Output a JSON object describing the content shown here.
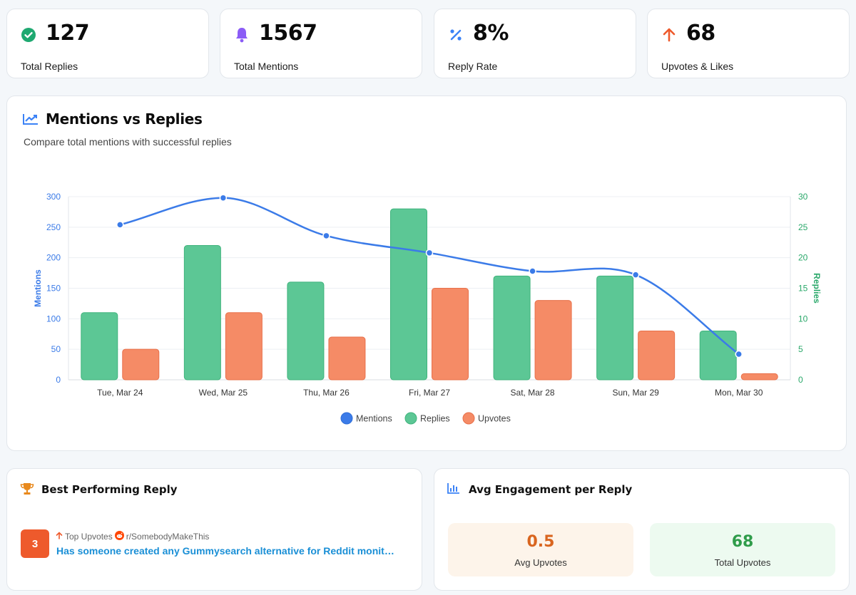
{
  "stats": [
    {
      "value": "127",
      "label": "Total Replies",
      "icon": "check-circle-icon",
      "color": "#1fa971"
    },
    {
      "value": "1567",
      "label": "Total Mentions",
      "icon": "bell-icon",
      "color": "#8b5cf6"
    },
    {
      "value": "8%",
      "label": "Reply Rate",
      "icon": "percent-icon",
      "color": "#3b82f6"
    },
    {
      "value": "68",
      "label": "Upvotes & Likes",
      "icon": "arrow-up-icon",
      "color": "#ee5a2c"
    }
  ],
  "chart": {
    "title": "Mentions vs Replies",
    "subtitle": "Compare total mentions with successful replies",
    "icon": "trending-line-icon"
  },
  "chart_data": {
    "type": "bar",
    "categories": [
      "Tue, Mar 24",
      "Wed, Mar 25",
      "Thu, Mar 26",
      "Fri, Mar 27",
      "Sat, Mar 28",
      "Sun, Mar 29",
      "Mon, Mar 30"
    ],
    "series": [
      {
        "name": "Mentions",
        "type": "line",
        "axis": "left",
        "color": "#3b7be8",
        "values": [
          254,
          298,
          236,
          208,
          178,
          172,
          42
        ]
      },
      {
        "name": "Replies",
        "type": "bar",
        "axis": "right",
        "color": "#5cc795",
        "values": [
          11,
          22,
          16,
          28,
          17,
          17,
          8
        ]
      },
      {
        "name": "Upvotes",
        "type": "bar",
        "axis": "right",
        "color": "#f58b66",
        "values": [
          5,
          11,
          7,
          15,
          13,
          8,
          1
        ]
      }
    ],
    "ylabel": "Mentions",
    "ylabel_right": "Replies",
    "ylim": [
      0,
      300
    ],
    "ylim_right": [
      0,
      30
    ],
    "yticks": [
      "0",
      "50",
      "100",
      "150",
      "200",
      "250",
      "300"
    ],
    "yticks_right": [
      "0",
      "5",
      "10",
      "15",
      "20",
      "25",
      "30"
    ],
    "legend_position": "bottom-center",
    "grid": true
  },
  "best_reply": {
    "title": "Best Performing Reply",
    "icon": "trophy-icon",
    "rank": "3",
    "meta_label": "Top Upvotes",
    "subreddit": "r/SomebodyMakeThis",
    "text": "Has someone created any Gummysearch alternative for Reddit monito..."
  },
  "engagement": {
    "title": "Avg Engagement per Reply",
    "icon": "bar-chart-icon",
    "avg_value": "0.5",
    "avg_label": "Avg Upvotes",
    "avg_color": "#d9651f",
    "total_value": "68",
    "total_label": "Total Upvotes",
    "total_color": "#2f9c4a"
  }
}
